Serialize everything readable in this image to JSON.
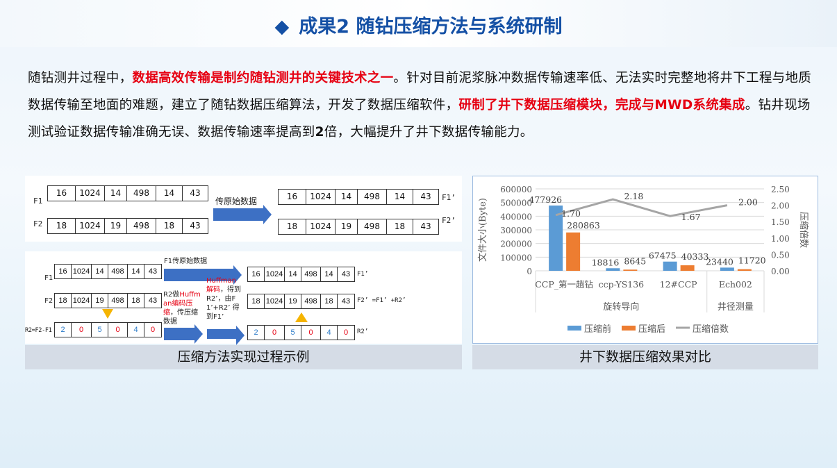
{
  "title": {
    "marker": "◆",
    "text": "成果2  随钻压缩方法与系统研制"
  },
  "paragraph": {
    "p1": "随钻测井过程中，",
    "p2": "数据高效传输是制约随钻测井的关键技术之一",
    "p3": "。针对目前泥浆脉冲数据传输速率低、无法实时完整地将井下工程与地质数据传输至地面的难题，建立了随钻数据压缩算法，开发了数据压缩软件，",
    "p4": "研制了井下数据压缩模块，完成与MWD系统集成",
    "p5": "。钻井现场测试验证数据传输准确无误、数据传输速率提高到",
    "p6": "2",
    "p7": "倍，大幅提升了井下数据传输能力。"
  },
  "diagram_top": {
    "F1": [
      "16",
      "1024",
      "14",
      "498",
      "14",
      "43"
    ],
    "F2": [
      "18",
      "1024",
      "19",
      "498",
      "18",
      "43"
    ],
    "labels": {
      "f1": "F1",
      "f2": "F2",
      "f1p": "F1’",
      "f2p": "F2’"
    },
    "arrow_label": "传原始数据"
  },
  "diagram_bottom": {
    "F1": [
      "16",
      "1024",
      "14",
      "498",
      "14",
      "43"
    ],
    "F2": [
      "18",
      "1024",
      "19",
      "498",
      "18",
      "43"
    ],
    "R2": [
      "2",
      "0",
      "5",
      "0",
      "4",
      "0"
    ],
    "labels": {
      "f1": "F1",
      "f2": "F2",
      "r2": "R2=F2-F1",
      "f1p": "F1’",
      "f2p": "F2’ =F1’ +R2’",
      "r2p": "R2’"
    },
    "arrow1_label": "F1传原始数据",
    "step2": {
      "a": "R2做",
      "b": "Huffman",
      "c": "编码压缩",
      "d": "，传压缩数据"
    },
    "step3": {
      "a": "Huffman解码",
      "b": "，得到R2’，由F1’+R2’ 得到F1’"
    }
  },
  "captions": {
    "left": "压缩方法实现过程示例",
    "right": "井下数据压缩效果对比"
  },
  "chart_data": {
    "type": "bar+line",
    "categories": [
      "CCP_第一趟钻",
      "ccp-YS136",
      "12#CCP",
      "Ech002"
    ],
    "groups": [
      {
        "label": "旋转导向",
        "span": 3
      },
      {
        "label": "井径测量",
        "span": 1
      }
    ],
    "series": [
      {
        "name": "压缩前",
        "type": "bar",
        "axis": "left",
        "color": "#5b9bd5",
        "values": [
          477926,
          18816,
          67475,
          23440
        ]
      },
      {
        "name": "压缩后",
        "type": "bar",
        "axis": "left",
        "color": "#ed7d31",
        "values": [
          280863,
          8645,
          40333,
          11720
        ]
      },
      {
        "name": "压缩倍数",
        "type": "line",
        "axis": "right",
        "color": "#a5a5a5",
        "values": [
          1.7,
          2.18,
          1.67,
          2.0
        ],
        "labels": [
          "1.70",
          "2.18",
          "1.67",
          "2.00"
        ]
      }
    ],
    "ylabel": "文件大小(Byte)",
    "y2label": "压缩倍数",
    "ylim": [
      0,
      600000
    ],
    "y2lim": [
      0,
      2.5
    ],
    "yticks": [
      "0",
      "100000",
      "200000",
      "300000",
      "400000",
      "500000",
      "600000"
    ],
    "y2ticks": [
      "0.00",
      "0.50",
      "1.00",
      "1.50",
      "2.00",
      "2.50"
    ],
    "grid": true,
    "legend": "bottom"
  }
}
